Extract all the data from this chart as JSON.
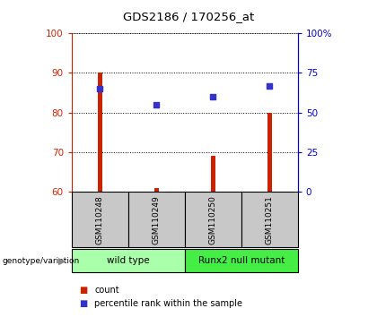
{
  "title": "GDS2186 / 170256_at",
  "samples": [
    "GSM110248",
    "GSM110249",
    "GSM110250",
    "GSM110251"
  ],
  "count_values": [
    90,
    61,
    69,
    80
  ],
  "count_base": 60,
  "percentile_values": [
    65,
    55,
    60,
    67
  ],
  "ylim_left": [
    60,
    100
  ],
  "ylim_right": [
    0,
    100
  ],
  "yticks_left": [
    60,
    70,
    80,
    90,
    100
  ],
  "yticks_right": [
    0,
    25,
    50,
    75,
    100
  ],
  "yticklabels_right": [
    "0",
    "25",
    "50",
    "75",
    "100%"
  ],
  "bar_color": "#CC2200",
  "dot_color": "#3333CC",
  "groups": [
    {
      "label": "wild type",
      "samples": [
        0,
        1
      ],
      "color": "#AAFFAA"
    },
    {
      "label": "Runx2 null mutant",
      "samples": [
        2,
        3
      ],
      "color": "#44EE44"
    }
  ],
  "group_label_prefix": "genotype/variation",
  "legend_count": "count",
  "legend_percentile": "percentile rank within the sample",
  "bar_width": 0.08,
  "dot_size": 20,
  "sample_box_color": "#C8C8C8",
  "left_color": "#CC2200",
  "right_color": "#0000CC",
  "fig_bg": "#FFFFFF",
  "ax_bg": "#FFFFFF"
}
